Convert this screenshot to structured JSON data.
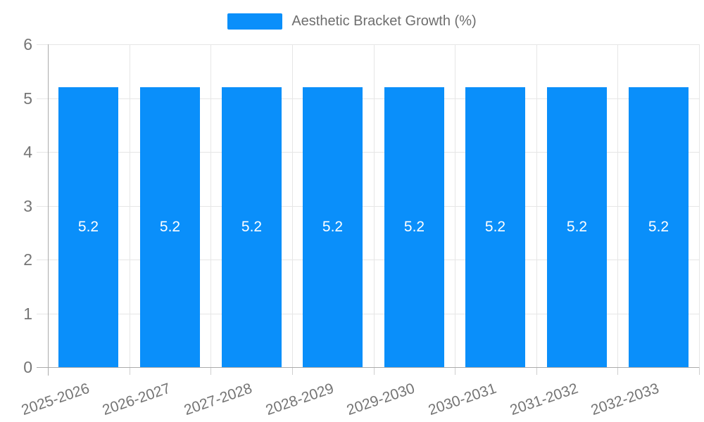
{
  "chart_data": {
    "type": "bar",
    "title": "",
    "legend": {
      "label": "Aesthetic Bracket Growth (%)",
      "position": "top"
    },
    "categories": [
      "2025-2026",
      "2026-2027",
      "2027-2028",
      "2028-2029",
      "2029-2030",
      "2030-2031",
      "2031-2032",
      "2032-2033"
    ],
    "values": [
      5.2,
      5.2,
      5.2,
      5.2,
      5.2,
      5.2,
      5.2,
      5.2
    ],
    "value_labels": [
      "5.2",
      "5.2",
      "5.2",
      "5.2",
      "5.2",
      "5.2",
      "5.2",
      "5.2"
    ],
    "xlabel": "",
    "ylabel": "",
    "ylim": [
      0,
      6
    ],
    "yticks": [
      0,
      1,
      2,
      3,
      4,
      5,
      6
    ],
    "grid": true,
    "colors": {
      "bar": "#0a8ffa",
      "grid": "#e6e6e6",
      "axis": "#ababab",
      "tick_label": "#757575",
      "bar_label": "#ffffff",
      "legend_label": "#6e6e6e"
    }
  }
}
